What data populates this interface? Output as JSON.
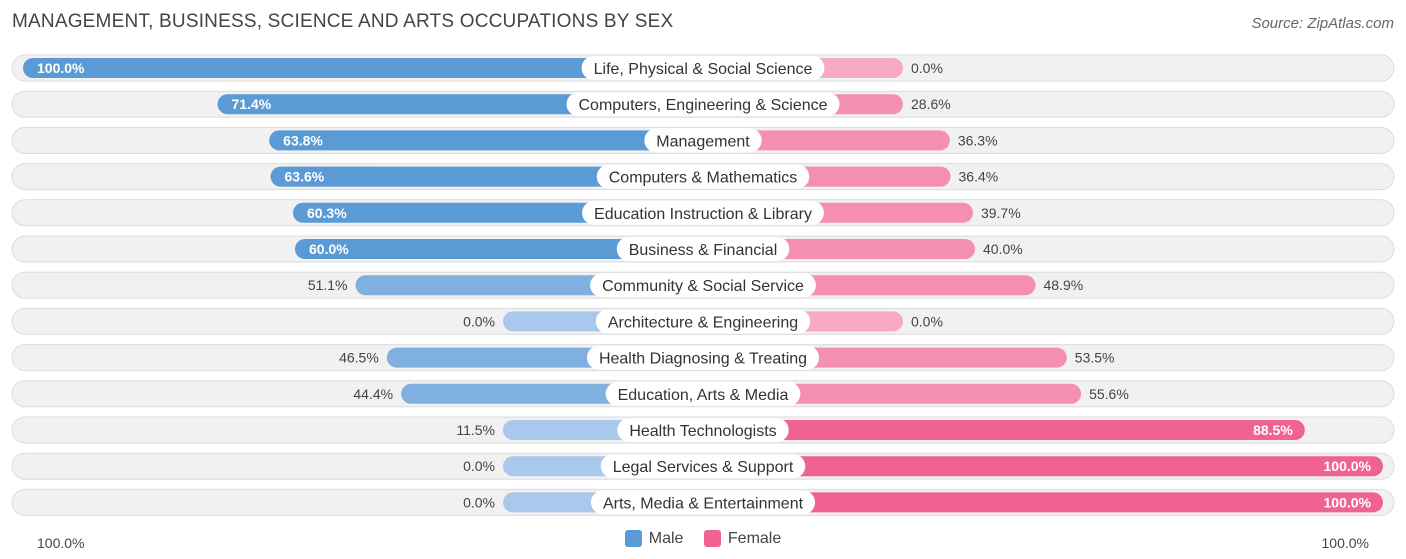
{
  "title": "MANAGEMENT, BUSINESS, SCIENCE AND ARTS OCCUPATIONS BY SEX",
  "source": "Source: ZipAtlas.com",
  "colors": {
    "male": "#5b9bd5",
    "male_light": "#a8c8ec",
    "female": "#f06292",
    "female_light": "#f8a9c3"
  },
  "legend": {
    "male": "Male",
    "female": "Female"
  },
  "axis": {
    "left": "100.0%",
    "right": "100.0%"
  },
  "chart_data": {
    "type": "bar",
    "orientation": "horizontal-diverging",
    "title": "MANAGEMENT, BUSINESS, SCIENCE AND ARTS OCCUPATIONS BY SEX",
    "xlim": [
      -100,
      100
    ],
    "categories": [
      "Life, Physical & Social Science",
      "Computers, Engineering & Science",
      "Management",
      "Computers & Mathematics",
      "Education Instruction & Library",
      "Business & Financial",
      "Community & Social Service",
      "Architecture & Engineering",
      "Health Diagnosing & Treating",
      "Education, Arts & Media",
      "Health Technologists",
      "Legal Services & Support",
      "Arts, Media & Entertainment"
    ],
    "series": [
      {
        "name": "Male",
        "values": [
          100.0,
          71.4,
          63.8,
          63.6,
          60.3,
          60.0,
          51.1,
          0.0,
          46.5,
          44.4,
          11.5,
          0.0,
          0.0
        ],
        "labels": [
          "100.0%",
          "71.4%",
          "63.8%",
          "63.6%",
          "60.3%",
          "60.0%",
          "51.1%",
          "0.0%",
          "46.5%",
          "44.4%",
          "11.5%",
          "0.0%",
          "0.0%"
        ]
      },
      {
        "name": "Female",
        "values": [
          0.0,
          28.6,
          36.3,
          36.4,
          39.7,
          40.0,
          48.9,
          0.0,
          53.5,
          55.6,
          88.5,
          100.0,
          100.0
        ],
        "labels": [
          "0.0%",
          "28.6%",
          "36.3%",
          "36.4%",
          "39.7%",
          "40.0%",
          "48.9%",
          "0.0%",
          "53.5%",
          "55.6%",
          "88.5%",
          "100.0%",
          "100.0%"
        ]
      }
    ],
    "legend_position": "bottom-center"
  }
}
